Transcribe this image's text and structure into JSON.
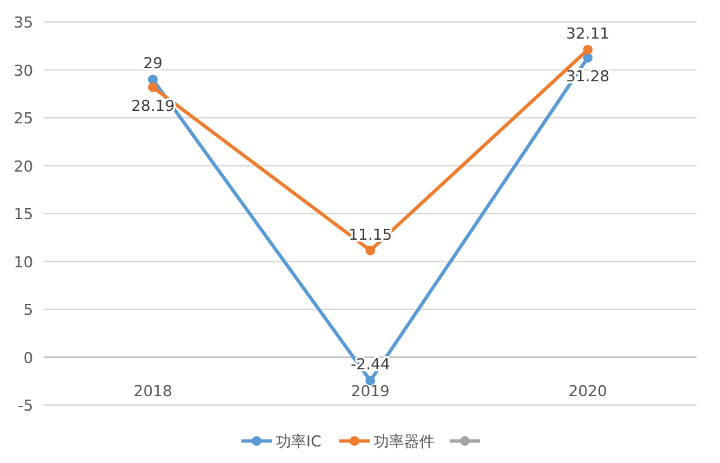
{
  "chart_data": {
    "type": "line",
    "categories": [
      "2018",
      "2019",
      "2020"
    ],
    "series": [
      {
        "name": "功率IC",
        "color": "#5b9bd5",
        "values": [
          29,
          -2.44,
          31.28
        ]
      },
      {
        "name": "功率器件",
        "color": "#ed7d31",
        "values": [
          28.19,
          11.15,
          32.11
        ]
      },
      {
        "color": "#a5a5a5",
        "values": [
          null,
          null,
          null
        ]
      }
    ],
    "ylim": [
      -5,
      35
    ],
    "yticks": [
      -5,
      0,
      5,
      10,
      15,
      20,
      25,
      30,
      35
    ],
    "grid": "y",
    "legend": "bottom",
    "marker": "circle",
    "line_style": "solid",
    "data_labels": true
  }
}
